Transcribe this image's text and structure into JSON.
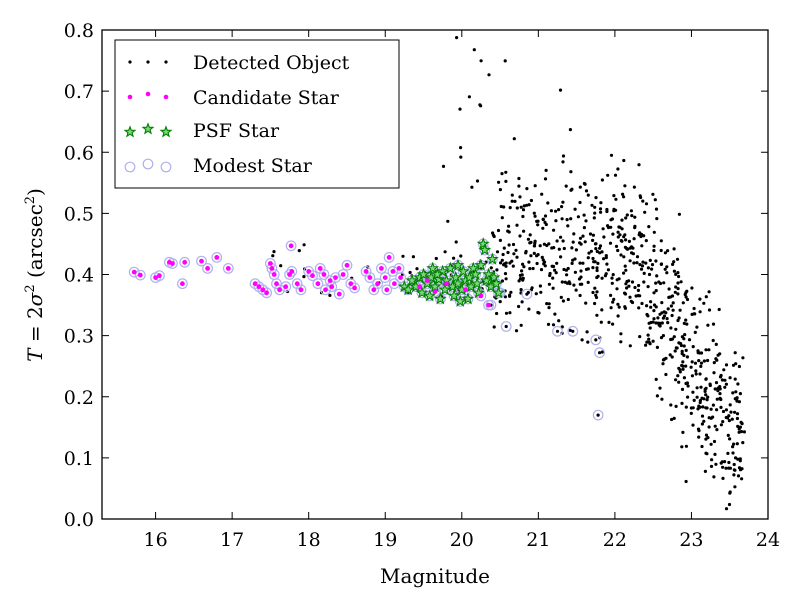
{
  "chart_data": {
    "type": "scatter",
    "xlabel": "Magnitude",
    "ylabel_parts": {
      "T": "T",
      "eq": " = 2",
      "sigma": "σ",
      "sup2a": "2",
      "unit": " (arcsec",
      "sup2b": "2",
      "close": ")"
    },
    "xlim": [
      15.3,
      24
    ],
    "ylim": [
      0.0,
      0.8
    ],
    "x_ticks": [
      16,
      17,
      18,
      19,
      20,
      21,
      22,
      23,
      24
    ],
    "y_ticks": [
      0.0,
      0.1,
      0.2,
      0.3,
      0.4,
      0.5,
      0.6,
      0.7,
      0.8
    ],
    "grid": false,
    "legend_position": "top-left",
    "colors": {
      "detected": "#000000",
      "candidate": "#ff00ff",
      "psf": "#008000",
      "modest": "#b0b0ee"
    },
    "series": [
      {
        "name": "Detected Object",
        "marker": "dot",
        "count": 850
      },
      {
        "name": "Candidate Star",
        "marker": "small-circle"
      },
      {
        "name": "PSF Star",
        "marker": "star"
      },
      {
        "name": "Modest Star",
        "marker": "open-circle"
      }
    ],
    "candidate_points": [
      [
        15.72,
        0.404
      ],
      [
        15.8,
        0.399
      ],
      [
        16.0,
        0.395
      ],
      [
        16.05,
        0.398
      ],
      [
        16.18,
        0.42
      ],
      [
        16.22,
        0.418
      ],
      [
        16.35,
        0.385
      ],
      [
        16.38,
        0.42
      ],
      [
        16.6,
        0.422
      ],
      [
        16.68,
        0.41
      ],
      [
        16.8,
        0.428
      ],
      [
        16.95,
        0.41
      ],
      [
        17.3,
        0.385
      ],
      [
        17.35,
        0.38
      ],
      [
        17.4,
        0.375
      ],
      [
        17.45,
        0.37
      ],
      [
        17.5,
        0.418
      ],
      [
        17.52,
        0.41
      ],
      [
        17.55,
        0.4
      ],
      [
        17.58,
        0.385
      ],
      [
        17.62,
        0.375
      ],
      [
        17.7,
        0.38
      ],
      [
        17.75,
        0.4
      ],
      [
        17.78,
        0.405
      ],
      [
        17.85,
        0.385
      ],
      [
        17.9,
        0.375
      ],
      [
        18.0,
        0.405
      ],
      [
        18.05,
        0.398
      ],
      [
        18.12,
        0.385
      ],
      [
        18.15,
        0.41
      ],
      [
        18.2,
        0.4
      ],
      [
        18.22,
        0.375
      ],
      [
        18.28,
        0.39
      ],
      [
        18.3,
        0.38
      ],
      [
        18.35,
        0.395
      ],
      [
        18.4,
        0.368
      ],
      [
        18.45,
        0.4
      ],
      [
        18.5,
        0.415
      ],
      [
        18.55,
        0.385
      ],
      [
        18.6,
        0.378
      ],
      [
        18.75,
        0.405
      ],
      [
        18.8,
        0.395
      ],
      [
        18.85,
        0.375
      ],
      [
        18.9,
        0.385
      ],
      [
        18.95,
        0.41
      ],
      [
        19.0,
        0.395
      ],
      [
        19.02,
        0.375
      ],
      [
        19.05,
        0.428
      ],
      [
        19.1,
        0.405
      ],
      [
        19.12,
        0.385
      ],
      [
        19.18,
        0.41
      ],
      [
        19.2,
        0.395
      ],
      [
        17.77,
        0.447
      ],
      [
        20.35,
        0.35
      ],
      [
        19.45,
        0.38
      ],
      [
        19.55,
        0.39
      ],
      [
        19.65,
        0.372
      ],
      [
        19.8,
        0.385
      ],
      [
        20.05,
        0.375
      ],
      [
        20.25,
        0.365
      ]
    ],
    "psf_points": [
      [
        19.25,
        0.38
      ],
      [
        19.3,
        0.375
      ],
      [
        19.35,
        0.39
      ],
      [
        19.4,
        0.38
      ],
      [
        19.45,
        0.395
      ],
      [
        19.48,
        0.37
      ],
      [
        19.5,
        0.4
      ],
      [
        19.55,
        0.385
      ],
      [
        19.58,
        0.365
      ],
      [
        19.6,
        0.395
      ],
      [
        19.62,
        0.41
      ],
      [
        19.65,
        0.38
      ],
      [
        19.7,
        0.392
      ],
      [
        19.72,
        0.36
      ],
      [
        19.75,
        0.405
      ],
      [
        19.78,
        0.375
      ],
      [
        19.8,
        0.39
      ],
      [
        19.85,
        0.41
      ],
      [
        19.88,
        0.38
      ],
      [
        19.9,
        0.365
      ],
      [
        19.92,
        0.395
      ],
      [
        19.95,
        0.385
      ],
      [
        19.98,
        0.356
      ],
      [
        20.0,
        0.375
      ],
      [
        20.02,
        0.405
      ],
      [
        20.05,
        0.39
      ],
      [
        20.08,
        0.36
      ],
      [
        20.1,
        0.395
      ],
      [
        20.12,
        0.38
      ],
      [
        20.15,
        0.41
      ],
      [
        20.18,
        0.4
      ],
      [
        20.2,
        0.385
      ],
      [
        20.22,
        0.37
      ],
      [
        20.25,
        0.415
      ],
      [
        20.28,
        0.45
      ],
      [
        20.3,
        0.44
      ],
      [
        20.32,
        0.39
      ],
      [
        20.35,
        0.4
      ],
      [
        20.38,
        0.38
      ],
      [
        20.4,
        0.425
      ],
      [
        20.42,
        0.395
      ],
      [
        20.45,
        0.385
      ],
      [
        20.48,
        0.37
      ],
      [
        19.95,
        0.415
      ],
      [
        19.68,
        0.4
      ]
    ],
    "modest_points": [
      [
        20.58,
        0.315
      ],
      [
        20.85,
        0.368
      ],
      [
        21.25,
        0.307
      ],
      [
        21.45,
        0.307
      ],
      [
        21.75,
        0.293
      ],
      [
        21.8,
        0.272
      ],
      [
        21.78,
        0.17
      ],
      [
        20.38,
        0.35
      ],
      [
        20.5,
        0.37
      ]
    ]
  }
}
